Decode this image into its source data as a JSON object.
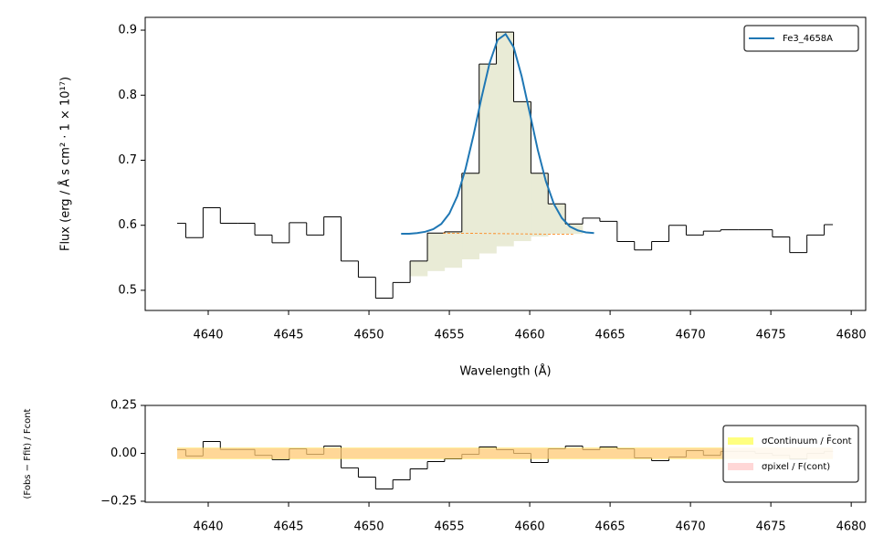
{
  "chart_data": [
    {
      "type": "step",
      "xlabel": "Wavelength (Å)",
      "ylabel": "Flux (erg / Å s cm² · 1 × 10¹⁷)",
      "xlim": [
        4636.08,
        4680.9
      ],
      "ylim": [
        0.469,
        0.9197
      ],
      "xticks": [
        4640,
        4645,
        4650,
        4655,
        4660,
        4665,
        4670,
        4675,
        4680
      ],
      "yticks": [
        0.5,
        0.6,
        0.7,
        0.8,
        0.9
      ],
      "legend": "upper right",
      "series": [
        {
          "color": "#000000",
          "style": "step",
          "x": [
            4638.07,
            4639.14,
            4640.22,
            4641.29,
            4642.36,
            4643.44,
            4644.51,
            4645.58,
            4646.66,
            4647.73,
            4648.8,
            4649.88,
            4650.95,
            4652.02,
            4653.1,
            4654.17,
            4655.24,
            4656.32,
            4657.39,
            4658.46,
            4659.54,
            4660.61,
            4661.68,
            4662.76,
            4663.83,
            4664.9,
            4665.98,
            4667.05,
            4668.12,
            4669.2,
            4670.27,
            4671.34,
            4672.42,
            4673.49,
            4674.56,
            4675.64,
            4676.71,
            4677.78,
            4678.86
          ],
          "values": [
            0.603,
            0.581,
            0.627,
            0.603,
            0.603,
            0.585,
            0.573,
            0.604,
            0.585,
            0.613,
            0.545,
            0.52,
            0.488,
            0.512,
            0.545,
            0.588,
            0.59,
            0.68,
            0.848,
            0.897,
            0.79,
            0.68,
            0.633,
            0.602,
            0.611,
            0.606,
            0.575,
            0.562,
            0.575,
            0.6,
            0.585,
            0.591,
            0.593,
            0.593,
            0.593,
            0.582,
            0.558,
            0.585,
            0.601
          ]
        },
        {
          "name": "Fe3_4658A",
          "color": "#1f77b4",
          "style": "line",
          "x": [
            4652,
            4652.5,
            4653,
            4653.5,
            4654,
            4654.5,
            4655,
            4655.5,
            4656,
            4656.5,
            4657,
            4657.5,
            4658,
            4658.5,
            4659,
            4659.5,
            4660,
            4660.5,
            4661,
            4661.5,
            4662,
            4662.5,
            4663,
            4663.5,
            4664
          ],
          "values": [
            0.587,
            0.587,
            0.588,
            0.59,
            0.594,
            0.602,
            0.618,
            0.645,
            0.686,
            0.738,
            0.796,
            0.849,
            0.885,
            0.894,
            0.874,
            0.829,
            0.773,
            0.716,
            0.668,
            0.633,
            0.611,
            0.598,
            0.592,
            0.589,
            0.588
          ]
        },
        {
          "color": "#ff7f0e",
          "style": "dashed",
          "x": [
            4654.6,
            4662.7
          ],
          "values": [
            0.588,
            0.586
          ]
        }
      ],
      "fill": {
        "color": "#e9ebd6",
        "x": [
          4653.1,
          4654.17,
          4655.24,
          4656.32,
          4657.39,
          4658.46,
          4659.54,
          4660.61,
          4661.68,
          4662.76
        ],
        "lower": [
          0.522,
          0.53,
          0.535,
          0.548,
          0.557,
          0.568,
          0.576,
          0.583,
          0.587,
          0.587
        ]
      }
    },
    {
      "type": "step",
      "ylabel": "(Fobs − Ffit) / Fcont",
      "xlim": [
        4636.08,
        4680.9
      ],
      "ylim": [
        -0.255,
        0.25
      ],
      "xticks": [
        4640,
        4645,
        4650,
        4655,
        4660,
        4665,
        4670,
        4675,
        4680
      ],
      "yticks": [
        {
          "value": 0.25,
          "label": "0.25"
        },
        {
          "value": 0,
          "label": "0.00"
        },
        {
          "value": -0.25,
          "label": "−0.25"
        }
      ],
      "legend": "center right",
      "series": [
        {
          "color": "#000000",
          "style": "step",
          "x": [
            4638.07,
            4639.14,
            4640.22,
            4641.29,
            4642.36,
            4643.44,
            4644.51,
            4645.58,
            4646.66,
            4647.73,
            4648.8,
            4649.88,
            4650.95,
            4652.02,
            4653.1,
            4654.17,
            4655.24,
            4656.32,
            4657.39,
            4658.46,
            4659.54,
            4660.61,
            4661.68,
            4662.76,
            4663.83,
            4664.9,
            4665.98,
            4667.05,
            4668.12,
            4669.2,
            4670.27,
            4671.34,
            4672.42,
            4673.49,
            4674.56,
            4675.64,
            4676.71,
            4677.78,
            4678.86
          ],
          "values": [
            0.019,
            -0.014,
            0.062,
            0.02,
            0.02,
            -0.01,
            -0.033,
            0.024,
            -0.005,
            0.038,
            -0.076,
            -0.124,
            -0.186,
            -0.138,
            -0.081,
            -0.043,
            -0.029,
            -0.005,
            0.033,
            0.019,
            0,
            -0.048,
            0.024,
            0.038,
            0.019,
            0.033,
            0.024,
            -0.024,
            -0.038,
            -0.019,
            0.014,
            -0.01,
            0.01,
            0.01,
            0,
            -0.01,
            -0.03,
            0,
            0.01
          ]
        }
      ],
      "bands": [
        {
          "name": "σContinuum / F̄cont",
          "color": "#ffff00",
          "halfwidth": 0.03
        },
        {
          "name": "σpixel / F(cont)",
          "color": "#ffb0b0",
          "halfwidth": 0.028
        }
      ]
    }
  ]
}
